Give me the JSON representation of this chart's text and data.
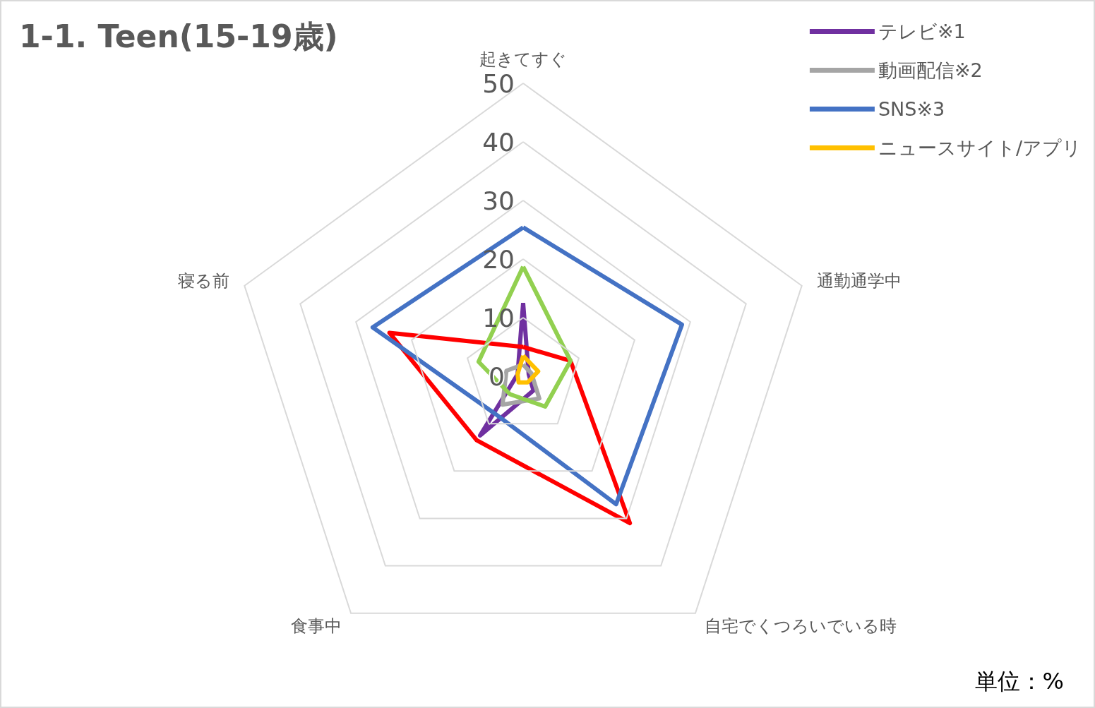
{
  "chart_data": {
    "type": "radar",
    "title": "1-1. Teen(15-19歳)",
    "categories": [
      "起きてすぐ",
      "通勤通学中",
      "自宅でくつろいでいる時",
      "食事中",
      "寝る前"
    ],
    "series": [
      {
        "name": "テレビ※1",
        "color": "#7030a0",
        "values": [
          12.5,
          1,
          3,
          12.5,
          1
        ]
      },
      {
        "color": "#ff0000",
        "values": [
          5,
          8.5,
          31,
          13.5,
          24
        ]
      },
      {
        "name": "動画配信※2",
        "color": "#a5a5a5",
        "values": [
          2,
          1.5,
          4.7,
          6,
          3
        ]
      },
      {
        "color": "#92d050",
        "values": [
          18.7,
          8.5,
          6.4,
          3.8,
          8
        ]
      },
      {
        "name": "SNS※3",
        "color": "#4472c4",
        "values": [
          25.4,
          28.5,
          27,
          8,
          27
        ]
      },
      {
        "name": "ニュースサイト/アプリ",
        "color": "#ffc000",
        "values": [
          3.5,
          2.7,
          1.3,
          1.3,
          1
        ]
      }
    ],
    "ylim": [
      0,
      50
    ],
    "yticks": [
      0,
      10,
      20,
      30,
      40,
      50
    ],
    "grid": true,
    "legend": "top right",
    "annotations": [
      "単位：%"
    ]
  }
}
